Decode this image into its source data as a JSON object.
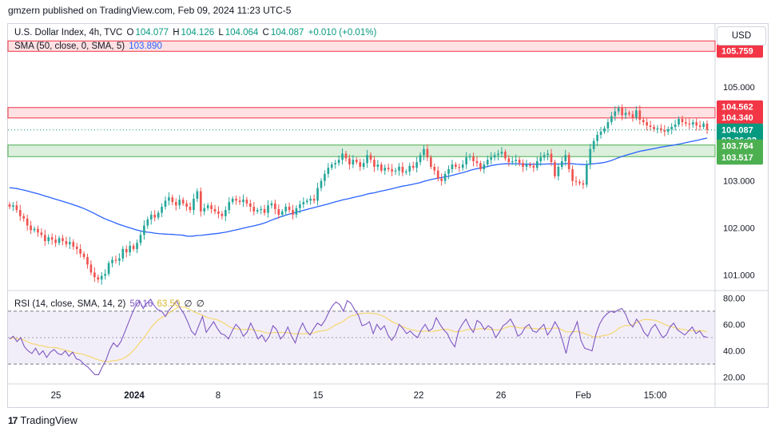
{
  "header": {
    "published": "gmzern published on TradingView.com, Feb 09, 2024 11:23 UTC-5"
  },
  "legend": {
    "symbol": "U.S. Dollar Index, 4h, TVC",
    "o_label": "O",
    "o_val": "104.077",
    "h_label": "H",
    "h_val": "104.126",
    "l_label": "L",
    "l_val": "104.064",
    "c_label": "C",
    "c_val": "104.087",
    "change": "+0.010 (+0.01%)",
    "sma_label": "SMA (50, close, 0, SMA, 5)",
    "sma_val": "103.890",
    "rsi_label": "RSI (14, close, SMA, 14, 2)",
    "rsi_val": "50.16",
    "rsi_sma_val": "63.50",
    "z1": "∅",
    "z2": "∅"
  },
  "currency_button": "USD",
  "footer": {
    "brand": "TradingView",
    "logo": "17"
  },
  "colors": {
    "up": "#26a69a",
    "down": "#ef5350",
    "sma": "#2962ff",
    "rsi": "#7e57c2",
    "rsi_sma": "#f5d76e",
    "last": "#089981"
  },
  "chart_data": [
    {
      "type": "candlestick",
      "title": "U.S. Dollar Index, 4h, TVC",
      "price_labels": [
        "105.000",
        "104.000",
        "103.000",
        "102.000",
        "101.000"
      ],
      "time_labels": [
        "25",
        "2024",
        "8",
        "15",
        "22",
        "26",
        "Feb",
        "15:00"
      ],
      "ylim": [
        100.7,
        105.9
      ],
      "zones": [
        {
          "name": "resistance-top",
          "from": 105.759,
          "to": 105.98,
          "label": "105.759"
        },
        {
          "name": "resistance",
          "from": 104.34,
          "to": 104.562,
          "label_top": "104.562",
          "label_bottom": "104.340"
        },
        {
          "name": "support",
          "from": 103.517,
          "to": 103.764,
          "label_top": "103.764",
          "label_bottom": "103.517"
        }
      ],
      "last_price": {
        "value": 104.087,
        "label": "104.087",
        "countdown": "03:36:02"
      },
      "sma_last": 103.89,
      "closes": [
        102.45,
        102.48,
        102.38,
        102.25,
        102.2,
        102.05,
        101.95,
        101.98,
        101.9,
        101.85,
        101.72,
        101.8,
        101.75,
        101.68,
        101.78,
        101.72,
        101.65,
        101.7,
        101.6,
        101.55,
        101.45,
        101.38,
        101.22,
        101.05,
        100.95,
        100.9,
        100.98,
        101.02,
        101.25,
        101.32,
        101.3,
        101.35,
        101.55,
        101.48,
        101.62,
        101.55,
        101.68,
        101.85,
        102.05,
        102.18,
        102.28,
        102.22,
        102.32,
        102.45,
        102.58,
        102.65,
        102.55,
        102.48,
        102.6,
        102.52,
        102.45,
        102.38,
        102.62,
        102.78,
        102.35,
        102.42,
        102.48,
        102.4,
        102.35,
        102.3,
        102.25,
        102.38,
        102.55,
        102.62,
        102.58,
        102.55,
        102.6,
        102.52,
        102.45,
        102.35,
        102.38,
        102.4,
        102.32,
        102.48,
        102.52,
        102.4,
        102.28,
        102.35,
        102.45,
        102.38,
        102.28,
        102.42,
        102.5,
        102.55,
        102.58,
        102.62,
        102.58,
        102.85,
        103.0,
        103.15,
        103.28,
        103.35,
        103.38,
        103.45,
        103.58,
        103.48,
        103.35,
        103.45,
        103.4,
        103.3,
        103.38,
        103.55,
        103.45,
        103.3,
        103.35,
        103.22,
        103.28,
        103.25,
        103.2,
        103.22,
        103.3,
        103.18,
        103.2,
        103.32,
        103.28,
        103.4,
        103.55,
        103.68,
        103.5,
        103.3,
        103.22,
        103.05,
        103.0,
        103.15,
        103.25,
        103.35,
        103.3,
        103.28,
        103.35,
        103.5,
        103.52,
        103.42,
        103.38,
        103.25,
        103.35,
        103.45,
        103.5,
        103.55,
        103.58,
        103.62,
        103.48,
        103.4,
        103.42,
        103.45,
        103.38,
        103.3,
        103.35,
        103.32,
        103.28,
        103.42,
        103.5,
        103.55,
        103.58,
        103.4,
        103.1,
        103.3,
        103.42,
        103.55,
        103.25,
        103.0,
        102.98,
        102.95,
        102.92,
        103.35,
        103.68,
        103.85,
        103.98,
        104.05,
        104.12,
        104.25,
        104.38,
        104.48,
        104.55,
        104.4,
        104.45,
        104.42,
        104.35,
        104.5,
        104.3,
        104.25,
        104.18,
        104.15,
        104.1,
        104.12,
        104.08,
        104.05,
        104.1,
        104.15,
        104.2,
        104.32,
        104.25,
        104.22,
        104.2,
        104.25,
        104.18,
        104.15,
        104.22,
        104.087
      ]
    },
    {
      "type": "line",
      "title": "RSI (14, close, SMA, 14, 2)",
      "price_labels": [
        "80.00",
        "60.00",
        "40.00",
        "20.00"
      ],
      "ylim": [
        15,
        85
      ],
      "band": [
        30,
        70
      ],
      "rsi_last": 50.16,
      "rsi_sma_last": 63.5,
      "rsi": [
        49,
        51,
        47,
        50,
        43,
        40,
        38,
        42,
        37,
        40,
        35,
        39,
        41,
        38,
        37,
        40,
        36,
        39,
        34,
        33,
        30,
        28,
        25,
        22,
        22,
        28,
        33,
        41,
        46,
        43,
        47,
        54,
        61,
        68,
        74,
        78,
        72,
        76,
        79,
        74,
        71,
        70,
        66,
        71,
        74,
        78,
        72,
        68,
        62,
        55,
        52,
        59,
        66,
        54,
        58,
        62,
        57,
        53,
        52,
        49,
        55,
        60,
        57,
        51,
        54,
        61,
        55,
        49,
        52,
        47,
        51,
        59,
        56,
        49,
        52,
        58,
        51,
        46,
        55,
        61,
        55,
        52,
        57,
        61,
        59,
        63,
        69,
        74,
        77,
        75,
        70,
        78,
        76,
        71,
        67,
        59,
        60,
        62,
        53,
        60,
        56,
        59,
        52,
        48,
        52,
        60,
        57,
        53,
        55,
        52,
        50,
        56,
        60,
        55,
        57,
        65,
        60,
        56,
        53,
        47,
        43,
        55,
        60,
        64,
        58,
        54,
        63,
        61,
        56,
        59,
        57,
        50,
        54,
        59,
        61,
        64,
        59,
        51,
        53,
        58,
        60,
        55,
        54,
        57,
        60,
        52,
        56,
        62,
        57,
        48,
        38,
        51,
        55,
        62,
        48,
        42,
        41,
        40,
        52,
        60,
        65,
        68,
        70,
        69,
        71,
        72,
        68,
        61,
        58,
        64,
        60,
        54,
        51,
        57,
        60,
        55,
        50,
        52,
        58,
        61,
        56,
        54,
        52,
        55,
        58,
        53,
        55,
        51,
        50.16
      ]
    }
  ]
}
